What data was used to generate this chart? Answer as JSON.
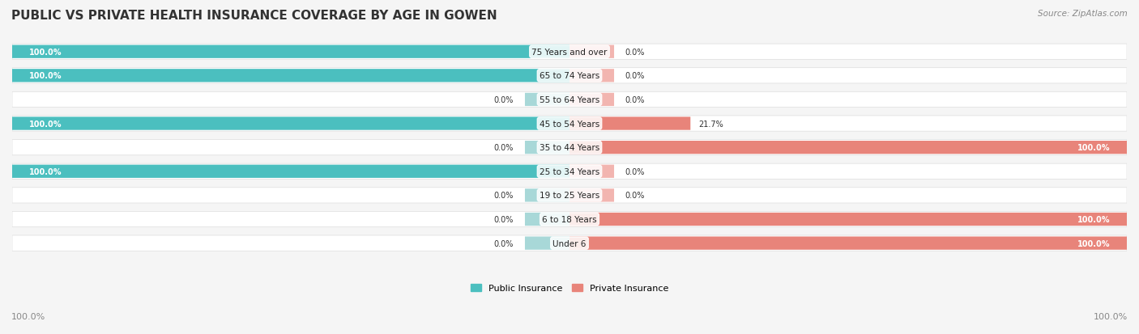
{
  "title": "PUBLIC VS PRIVATE HEALTH INSURANCE COVERAGE BY AGE IN GOWEN",
  "source": "Source: ZipAtlas.com",
  "categories": [
    "Under 6",
    "6 to 18 Years",
    "19 to 25 Years",
    "25 to 34 Years",
    "35 to 44 Years",
    "45 to 54 Years",
    "55 to 64 Years",
    "65 to 74 Years",
    "75 Years and over"
  ],
  "public": [
    0.0,
    0.0,
    0.0,
    100.0,
    0.0,
    100.0,
    0.0,
    100.0,
    100.0
  ],
  "private": [
    100.0,
    100.0,
    0.0,
    0.0,
    100.0,
    21.7,
    0.0,
    0.0,
    0.0
  ],
  "public_color": "#4BBFBF",
  "private_color": "#E8847A",
  "public_light_color": "#A8D8D8",
  "private_light_color": "#F2B5B0",
  "bg_color": "#f5f5f5",
  "bar_bg_color": "#ffffff",
  "title_color": "#333333",
  "label_color": "#555555",
  "axis_label_color": "#888888",
  "legend_public": "Public Insurance",
  "legend_private": "Private Insurance",
  "bar_height": 0.55,
  "x_left_label": "100.0%",
  "x_right_label": "100.0%"
}
